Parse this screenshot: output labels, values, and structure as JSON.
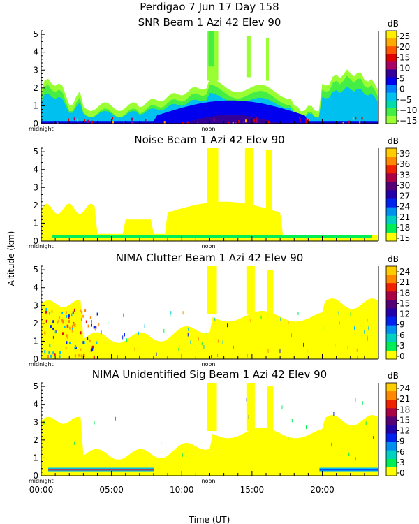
{
  "header": {
    "title": "Perdigao    7 Jun 17 Day 158"
  },
  "y_axis_label": "Altitude (km)",
  "x_axis_label": "Time (UT)",
  "colors": {
    "noise_yellow": "#ffff00",
    "noise_green": "#00ee55",
    "blue": "#1030e0",
    "navy": "#001090",
    "red": "#e01010",
    "lightgreen": "#88ee33"
  },
  "chart_data": [
    {
      "id": "snr",
      "type": "heatmap",
      "title": "SNR Beam 1 Azi   42 Elev 90",
      "x": {
        "range": [
          0,
          24
        ],
        "tick_hours": [
          0,
          5,
          10,
          15,
          20
        ],
        "tick_labels": [
          "00:00",
          "05:00",
          "10:00",
          "15:00",
          "20:00"
        ],
        "marker_labels": [
          "midnight",
          "noon"
        ]
      },
      "y": {
        "range": [
          0,
          5.2
        ],
        "ticks": [
          0,
          1,
          2,
          3,
          4,
          5
        ],
        "tick_labels": [
          "0",
          "1",
          "2",
          "3",
          "4",
          "5"
        ]
      },
      "colorbar": {
        "unit": "dB",
        "labels": [
          "25",
          "20",
          "15",
          "10",
          "5",
          "0",
          "−5",
          "−10",
          "−15"
        ],
        "colors": [
          "#ffee00",
          "#ffaa00",
          "#ff5500",
          "#dd0000",
          "#aa0066",
          "#330099",
          "#0000ee",
          "#0080ff",
          "#00c0f0",
          "#00ddaa",
          "#44ee44",
          "#99ff33"
        ]
      }
    },
    {
      "id": "noise",
      "type": "heatmap",
      "title": "Noise Beam 1 Azi   42 Elev 90",
      "x": {
        "range": [
          0,
          24
        ],
        "tick_hours": [
          0,
          5,
          10,
          15,
          20
        ],
        "tick_labels": [
          "00:00",
          "05:00",
          "10:00",
          "15:00",
          "20:00"
        ],
        "marker_labels": [
          "midnight",
          "noon"
        ]
      },
      "y": {
        "range": [
          0,
          5.2
        ],
        "ticks": [
          0,
          1,
          2,
          3,
          4,
          5
        ],
        "tick_labels": [
          "0",
          "1",
          "2",
          "3",
          "4",
          "5"
        ]
      },
      "colorbar": {
        "unit": "dB",
        "labels": [
          "39",
          "36",
          "33",
          "30",
          "27",
          "24",
          "21",
          "18",
          "15"
        ],
        "colors": [
          "#ffcc00",
          "#ff8800",
          "#ee2200",
          "#aa0044",
          "#550077",
          "#2200aa",
          "#0022ee",
          "#0090f0",
          "#00d0c0",
          "#00ee55",
          "#ffff00"
        ]
      }
    },
    {
      "id": "clutter",
      "type": "heatmap",
      "title": "NIMA Clutter Beam 1 Azi   42 Elev 90",
      "x": {
        "range": [
          0,
          24
        ],
        "tick_hours": [
          0,
          5,
          10,
          15,
          20
        ],
        "tick_labels": [
          "00:00",
          "05:00",
          "10:00",
          "15:00",
          "20:00"
        ],
        "marker_labels": [
          "midnight",
          "noon"
        ]
      },
      "y": {
        "range": [
          0,
          5.2
        ],
        "ticks": [
          0,
          1,
          2,
          3,
          4,
          5
        ],
        "tick_labels": [
          "0",
          "1",
          "2",
          "3",
          "4",
          "5"
        ]
      },
      "colorbar": {
        "unit": "dB",
        "labels": [
          "24",
          "21",
          "18",
          "15",
          "12",
          "9",
          "6",
          "3",
          "0"
        ],
        "colors": [
          "#ffcc00",
          "#ff8800",
          "#ee2200",
          "#aa0044",
          "#550077",
          "#2200aa",
          "#0022ee",
          "#0090f0",
          "#00d0c0",
          "#00ee55",
          "#ffff00"
        ]
      }
    },
    {
      "id": "unident",
      "type": "heatmap",
      "title": "NIMA Unidentified Sig Beam 1 Azi   42 Elev 90",
      "x": {
        "range": [
          0,
          24
        ],
        "tick_hours": [
          0,
          5,
          10,
          15,
          20
        ],
        "tick_labels": [
          "00:00",
          "05:00",
          "10:00",
          "15:00",
          "20:00"
        ],
        "marker_labels": [
          "midnight",
          "noon"
        ]
      },
      "y": {
        "range": [
          0,
          5.2
        ],
        "ticks": [
          0,
          1,
          2,
          3,
          4,
          5
        ],
        "tick_labels": [
          "0",
          "1",
          "2",
          "3",
          "4",
          "5"
        ]
      },
      "colorbar": {
        "unit": "dB",
        "labels": [
          "24",
          "21",
          "18",
          "15",
          "12",
          "9",
          "6",
          "3",
          "0"
        ],
        "colors": [
          "#ffcc00",
          "#ff8800",
          "#ee2200",
          "#aa0044",
          "#550077",
          "#2200aa",
          "#0022ee",
          "#0090f0",
          "#00d0c0",
          "#00ee55",
          "#ffff00"
        ]
      }
    }
  ]
}
